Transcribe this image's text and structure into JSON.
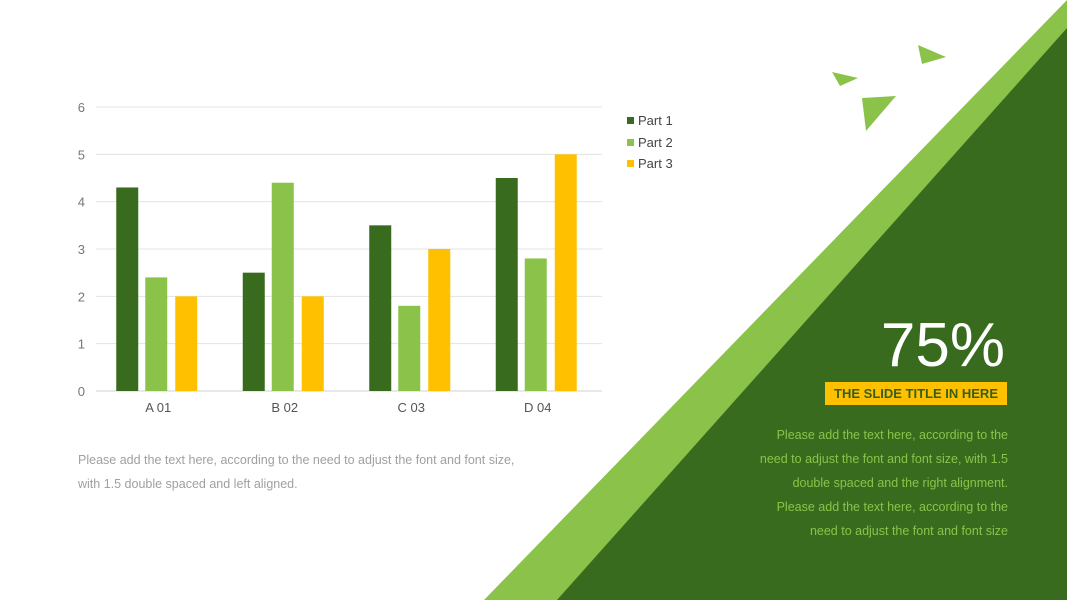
{
  "colors": {
    "part1": "#386b1e",
    "part2": "#8bc34a",
    "part3": "#ffc000",
    "dark_green": "#386b1e",
    "light_green": "#8bc34a"
  },
  "chart_data": {
    "type": "bar",
    "categories": [
      "A 01",
      "B 02",
      "C 03",
      "D 04"
    ],
    "series": [
      {
        "name": "Part 1",
        "values": [
          4.3,
          2.5,
          3.5,
          4.5
        ]
      },
      {
        "name": "Part 2",
        "values": [
          2.4,
          4.4,
          1.8,
          2.8
        ]
      },
      {
        "name": "Part 3",
        "values": [
          2,
          2,
          3,
          5
        ]
      }
    ],
    "ylim": [
      0,
      6
    ],
    "yticks": [
      "0",
      "1",
      "2",
      "3",
      "4",
      "5",
      "6"
    ],
    "grid": true,
    "legend": "right",
    "title": "",
    "xlabel": "",
    "ylabel": ""
  },
  "left_text": "Please add the text here, according to the need to adjust the font and font size, with 1.5 double spaced and left aligned.",
  "right_panel": {
    "percent": "75%",
    "title": "THE SLIDE TITLE IN HERE",
    "lines": [
      "Please add the text here, according to the",
      "need to adjust the font and font size, with 1.5",
      "double spaced and the right alignment.",
      "Please add the text here, according to the",
      "need to adjust the font and font size"
    ]
  }
}
